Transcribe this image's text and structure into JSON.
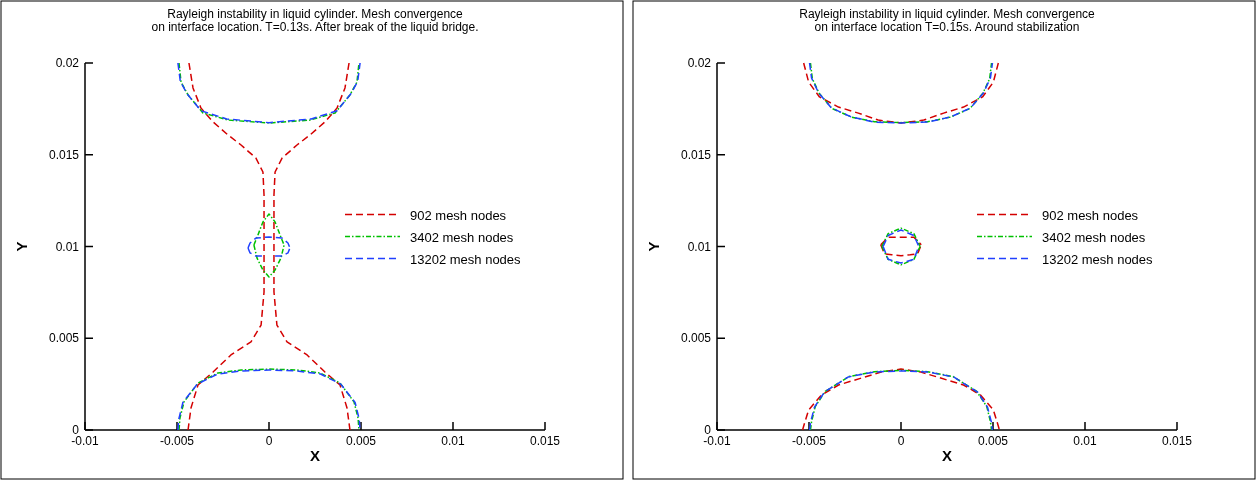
{
  "chart_data": [
    {
      "type": "line",
      "title": "Rayleigh instability in liquid cylinder.  Mesh convergence\non interface location. T=0.13s. After break of the liquid bridge.",
      "xlabel": "X",
      "ylabel": "Y",
      "xlim": [
        -0.01,
        0.015
      ],
      "ylim": [
        0,
        0.02
      ],
      "xticks": [
        -0.01,
        -0.005,
        0,
        0.005,
        0.01,
        0.015
      ],
      "yticks": [
        0,
        0.005,
        0.01,
        0.015,
        0.02
      ],
      "legend": "right",
      "grid": false,
      "series": [
        {
          "name": "902 mesh nodes",
          "color": "#d40000",
          "line_style": "dashed",
          "x": [
            -0.00435,
            -0.00413,
            -0.0037,
            -0.00304,
            -0.00223,
            -0.00152,
            -0.00071,
            -0.00033,
            -0.00027,
            -0.00027,
            -0.00027,
            -0.00027,
            -0.00043,
            -0.00098,
            -0.00207,
            -0.00304,
            -0.00386,
            -0.00424,
            -0.0044
          ],
          "values": [
            0.02,
            0.01864,
            0.01755,
            0.01679,
            0.01608,
            0.01553,
            0.01482,
            0.01406,
            0.01281,
            0.01134,
            0.00954,
            0.00752,
            0.00572,
            0.0048,
            0.00409,
            0.00316,
            0.00245,
            0.0012,
            0
          ]
        },
        {
          "color": "#d40000",
          "line_style": "dashed",
          "x": [
            0.00435,
            0.00413,
            0.0037,
            0.00304,
            0.00223,
            0.00152,
            0.00071,
            0.00033,
            0.00027,
            0.00027,
            0.00027,
            0.00027,
            0.00043,
            0.00098,
            0.00207,
            0.00304,
            0.00386,
            0.00424,
            0.0044
          ],
          "values": [
            0.02,
            0.01864,
            0.01755,
            0.01679,
            0.01608,
            0.01553,
            0.01482,
            0.01406,
            0.01281,
            0.01134,
            0.00954,
            0.00752,
            0.00572,
            0.0048,
            0.00409,
            0.00316,
            0.00245,
            0.0012,
            0
          ]
        },
        {
          "name": "3402 mesh nodes",
          "color": "#00c000",
          "line_style": "dashdot",
          "x": [
            -0.00489,
            -0.00478,
            -0.0044,
            -0.00359,
            -0.00223,
            0,
            0.00223,
            0.00359,
            0.0044,
            0.00478,
            0.00489
          ],
          "values": [
            0.02,
            0.01896,
            0.01826,
            0.01728,
            0.01689,
            0.01673,
            0.01689,
            0.01728,
            0.01826,
            0.01896,
            0.02
          ]
        },
        {
          "color": "#00c000",
          "line_style": "dashdot",
          "x": [
            -0.00489,
            -0.00484,
            -0.00462,
            -0.00386,
            -0.00277,
            -0.00152,
            0,
            0.00152,
            0.00277,
            0.00386,
            0.00462,
            0.00484,
            0.00489
          ],
          "values": [
            0,
            0.00065,
            0.00153,
            0.00256,
            0.00311,
            0.00327,
            0.00332,
            0.00327,
            0.00311,
            0.00256,
            0.00153,
            0.00065,
            0
          ]
        },
        {
          "color": "#00c000",
          "line_style": "dashdot",
          "x": [
            -0.00082,
            -0.0006,
            -0.00033,
            0,
            0.00033,
            0.0006,
            0.00082
          ],
          "values": [
            0.01008,
            0.01063,
            0.01134,
            0.01177,
            0.01134,
            0.01063,
            0.01008
          ]
        },
        {
          "color": "#00c000",
          "line_style": "dashdot",
          "x": [
            -0.00082,
            -0.00065,
            -0.00033,
            0,
            0.00033,
            0.00065,
            0.00082
          ],
          "values": [
            0.01008,
            0.00937,
            0.00872,
            0.00834,
            0.00872,
            0.00937,
            0.01008
          ]
        },
        {
          "name": "13202 mesh nodes",
          "color": "#2040ff",
          "line_style": "dashed",
          "x": [
            -0.00495,
            -0.00482,
            -0.00445,
            -0.0037,
            -0.0023,
            0,
            0.0023,
            0.0037,
            0.00445,
            0.00482,
            0.00495
          ],
          "values": [
            0.02,
            0.019,
            0.01832,
            0.0174,
            0.01695,
            0.01675,
            0.01695,
            0.0174,
            0.01832,
            0.019,
            0.02
          ]
        },
        {
          "color": "#2040ff",
          "line_style": "dashed",
          "x": [
            -0.00495,
            -0.0049,
            -0.00468,
            -0.0039,
            -0.0028,
            -0.0015,
            0,
            0.0015,
            0.0028,
            0.0039,
            0.00468,
            0.0049,
            0.00495
          ],
          "values": [
            0,
            0.0006,
            0.0015,
            0.0025,
            0.00305,
            0.00322,
            0.00327,
            0.00322,
            0.00305,
            0.0025,
            0.0015,
            0.0006,
            0
          ]
        },
        {
          "color": "#2040ff",
          "line_style": "dashed",
          "x": [
            -0.00114,
            -0.00103,
            -0.00071,
            0,
            0.00071,
            0.00103,
            0.00114
          ],
          "values": [
            0.00992,
            0.01019,
            0.01046,
            0.01052,
            0.01046,
            0.01019,
            0.00992
          ]
        },
        {
          "color": "#2040ff",
          "line_style": "dashed",
          "x": [
            -0.00114,
            -0.00103,
            -0.00071,
            -0.00033,
            null,
            0.00033,
            0.00071,
            0.00103,
            0.00114
          ],
          "values": [
            0.00992,
            0.00965,
            0.00948,
            0.00948,
            null,
            0.00948,
            0.00948,
            0.00965,
            0.00992
          ]
        }
      ]
    },
    {
      "type": "line",
      "title": "Rayleigh instability in liquid cylinder. Mesh convergence\non interface location T=0.15s. Around stabilization",
      "xlabel": "X",
      "ylabel": "Y",
      "xlim": [
        -0.01,
        0.015
      ],
      "ylim": [
        0,
        0.02
      ],
      "xticks": [
        -0.01,
        -0.005,
        0,
        0.005,
        0.01,
        0.015
      ],
      "yticks": [
        0,
        0.005,
        0.01,
        0.015,
        0.02
      ],
      "legend": "right",
      "grid": false,
      "series": [
        {
          "name": "902 mesh nodes",
          "color": "#d40000",
          "line_style": "dashed",
          "x": [
            -0.00529,
            -0.00502,
            -0.00443,
            -0.0034,
            -0.00232,
            -0.00124,
            0,
            0.00124,
            0.00232,
            0.0034,
            0.00443,
            0.00502,
            0.00529
          ],
          "values": [
            0.02,
            0.01896,
            0.01815,
            0.0176,
            0.01727,
            0.01689,
            0.01673,
            0.01689,
            0.01727,
            0.0176,
            0.01815,
            0.01896,
            0.02
          ]
        },
        {
          "color": "#d40000",
          "line_style": "dashed",
          "x": [
            -0.00535,
            -0.00524,
            -0.00502,
            -0.00432,
            -0.0034,
            -0.00216,
            -0.00108,
            0,
            0.00108,
            0.00216,
            0.0034,
            0.00432,
            0.00502,
            0.00524,
            0.00535
          ],
          "values": [
            0,
            0.00038,
            0.00109,
            0.00191,
            0.00245,
            0.00283,
            0.00316,
            0.00332,
            0.00316,
            0.00283,
            0.00245,
            0.00191,
            0.00109,
            0.00038,
            0
          ]
        },
        {
          "color": "#d40000",
          "line_style": "dashed",
          "x": [
            -0.0011,
            -0.0007,
            0,
            0.0007,
            0.0011
          ],
          "values": [
            0.0101,
            0.0105,
            0.0105,
            0.0105,
            0.0101
          ]
        },
        {
          "color": "#d40000",
          "line_style": "dashed",
          "x": [
            -0.0011,
            -0.0009,
            -0.0005,
            0,
            0.0005,
            0.0009,
            0.0011
          ],
          "values": [
            0.0101,
            0.0096,
            0.00955,
            0.0095,
            0.00955,
            0.0096,
            0.0101
          ]
        },
        {
          "name": "3402 mesh nodes",
          "color": "#00c000",
          "line_style": "dashdot",
          "x": [
            -0.00492,
            -0.00482,
            -0.00445,
            -0.00375,
            -0.00268,
            -0.00145,
            0,
            0.00145,
            0.00268,
            0.00375,
            0.00445,
            0.00482,
            0.00492
          ],
          "values": [
            0.02,
            0.01915,
            0.01835,
            0.01752,
            0.01705,
            0.0168,
            0.01675,
            0.0168,
            0.01705,
            0.01752,
            0.01835,
            0.01915,
            0.02
          ]
        },
        {
          "color": "#00c000",
          "line_style": "dashdot",
          "x": [
            -0.00492,
            -0.00486,
            -0.00466,
            -0.00412,
            -0.00283,
            -0.00144,
            0,
            0.00144,
            0.00283,
            0.00412,
            0.00466,
            0.00486,
            0.00492
          ],
          "values": [
            0,
            0.00046,
            0.00128,
            0.0021,
            0.00291,
            0.00318,
            0.00325,
            0.00318,
            0.00291,
            0.0021,
            0.00128,
            0.00046,
            0
          ]
        },
        {
          "color": "#00c000",
          "line_style": "dashdot",
          "x": [
            -0.00104,
            -0.0007,
            0,
            0.0007,
            0.00104
          ],
          "values": [
            0.01,
            0.0107,
            0.011,
            0.0107,
            0.01
          ]
        },
        {
          "color": "#00c000",
          "line_style": "dashdot",
          "x": [
            -0.00104,
            -0.0007,
            0,
            0.0007,
            0.00104
          ],
          "values": [
            0.01,
            0.0093,
            0.009,
            0.0093,
            0.01
          ]
        },
        {
          "name": "13202 mesh nodes",
          "color": "#2040ff",
          "line_style": "dashed",
          "x": [
            -0.00497,
            -0.00486,
            -0.00448,
            -0.00378,
            -0.0027,
            -0.00146,
            0,
            0.00146,
            0.0027,
            0.00378,
            0.00448,
            0.00486,
            0.00497
          ],
          "values": [
            0.02,
            0.01918,
            0.01837,
            0.01755,
            0.01706,
            0.01678,
            0.01673,
            0.01678,
            0.01706,
            0.01755,
            0.01837,
            0.01918,
            0.02
          ]
        },
        {
          "color": "#2040ff",
          "line_style": "dashed",
          "x": [
            -0.00497,
            -0.00491,
            -0.0047,
            -0.00416,
            -0.00286,
            -0.00146,
            0,
            0.00146,
            0.00286,
            0.00416,
            0.0047,
            0.00491,
            0.00497
          ],
          "values": [
            0,
            0.00044,
            0.00125,
            0.00207,
            0.00289,
            0.00316,
            0.00322,
            0.00316,
            0.00289,
            0.00207,
            0.00125,
            0.00044,
            0
          ]
        },
        {
          "color": "#2040ff",
          "line_style": "dashed",
          "x": [
            -0.00097,
            -0.0007,
            0,
            0.0007,
            0.00097
          ],
          "values": [
            0.01,
            0.0106,
            0.0109,
            0.0106,
            0.01
          ]
        },
        {
          "color": "#2040ff",
          "line_style": "dashed",
          "x": [
            -0.00097,
            -0.0007,
            0,
            0.0007,
            0.00097
          ],
          "values": [
            0.01,
            0.0093,
            0.0091,
            0.0093,
            0.01
          ]
        }
      ]
    }
  ]
}
